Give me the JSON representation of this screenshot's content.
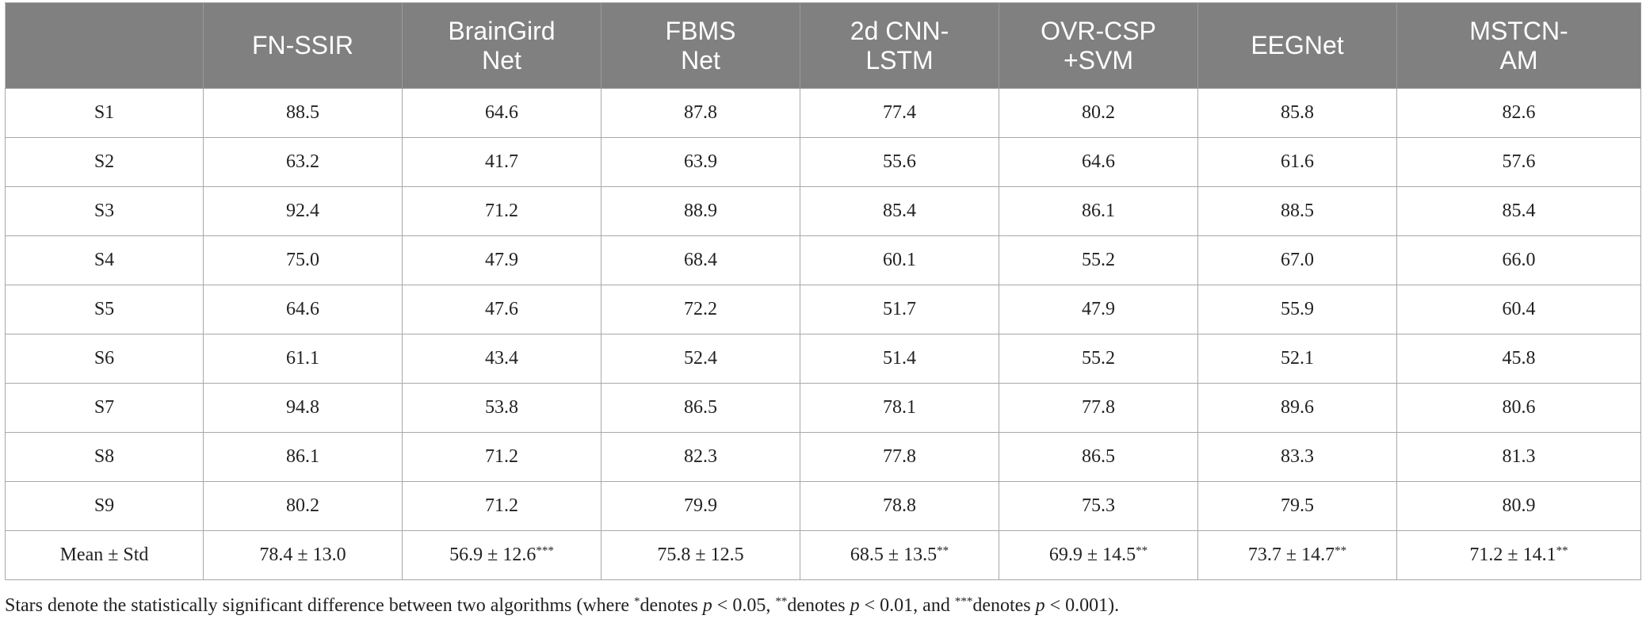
{
  "table": {
    "columns": [
      [
        "FN-SSIR"
      ],
      [
        "BrainGird",
        "Net"
      ],
      [
        "FBMS",
        "Net"
      ],
      [
        "2d CNN-",
        "LSTM"
      ],
      [
        "OVR-CSP",
        "+SVM"
      ],
      [
        "EEGNet"
      ],
      [
        "MSTCN-",
        "AM"
      ]
    ],
    "rows": [
      {
        "label": "S1",
        "cells": [
          {
            "text": "88.5"
          },
          {
            "text": "64.6"
          },
          {
            "text": "87.8"
          },
          {
            "text": "77.4"
          },
          {
            "text": "80.2"
          },
          {
            "text": "85.8"
          },
          {
            "text": "82.6"
          }
        ]
      },
      {
        "label": "S2",
        "cells": [
          {
            "text": "63.2"
          },
          {
            "text": "41.7"
          },
          {
            "text": "63.9"
          },
          {
            "text": "55.6"
          },
          {
            "text": "64.6"
          },
          {
            "text": "61.6"
          },
          {
            "text": "57.6"
          }
        ]
      },
      {
        "label": "S3",
        "cells": [
          {
            "text": "92.4"
          },
          {
            "text": "71.2"
          },
          {
            "text": "88.9"
          },
          {
            "text": "85.4"
          },
          {
            "text": "86.1"
          },
          {
            "text": "88.5"
          },
          {
            "text": "85.4"
          }
        ]
      },
      {
        "label": "S4",
        "cells": [
          {
            "text": "75.0"
          },
          {
            "text": "47.9"
          },
          {
            "text": "68.4"
          },
          {
            "text": "60.1"
          },
          {
            "text": "55.2"
          },
          {
            "text": "67.0"
          },
          {
            "text": "66.0"
          }
        ]
      },
      {
        "label": "S5",
        "cells": [
          {
            "text": "64.6"
          },
          {
            "text": "47.6"
          },
          {
            "text": "72.2"
          },
          {
            "text": "51.7"
          },
          {
            "text": "47.9"
          },
          {
            "text": "55.9"
          },
          {
            "text": "60.4"
          }
        ]
      },
      {
        "label": "S6",
        "cells": [
          {
            "text": "61.1"
          },
          {
            "text": "43.4"
          },
          {
            "text": "52.4"
          },
          {
            "text": "51.4"
          },
          {
            "text": "55.2"
          },
          {
            "text": "52.1"
          },
          {
            "text": "45.8"
          }
        ]
      },
      {
        "label": "S7",
        "cells": [
          {
            "text": "94.8"
          },
          {
            "text": "53.8"
          },
          {
            "text": "86.5"
          },
          {
            "text": "78.1"
          },
          {
            "text": "77.8"
          },
          {
            "text": "89.6"
          },
          {
            "text": "80.6"
          }
        ]
      },
      {
        "label": "S8",
        "cells": [
          {
            "text": "86.1"
          },
          {
            "text": "71.2"
          },
          {
            "text": "82.3"
          },
          {
            "text": "77.8"
          },
          {
            "text": "86.5"
          },
          {
            "text": "83.3"
          },
          {
            "text": "81.3"
          }
        ]
      },
      {
        "label": "S9",
        "cells": [
          {
            "text": "80.2"
          },
          {
            "text": "71.2"
          },
          {
            "text": "79.9"
          },
          {
            "text": "78.8"
          },
          {
            "text": "75.3"
          },
          {
            "text": "79.5"
          },
          {
            "text": "80.9"
          }
        ]
      },
      {
        "label": "Mean ± Std",
        "cells": [
          {
            "text": "78.4 ± 13.0"
          },
          {
            "text": "56.9 ± 12.6",
            "stars": "***"
          },
          {
            "text": "75.8 ± 12.5"
          },
          {
            "text": "68.5 ± 13.5",
            "stars": "**"
          },
          {
            "text": "69.9 ± 14.5",
            "stars": "**"
          },
          {
            "text": "73.7 ± 14.7",
            "stars": "**"
          },
          {
            "text": "71.2 ± 14.1",
            "stars": "**"
          }
        ]
      }
    ]
  },
  "footnote": [
    "Stars denote the statistically significant difference between two algorithms (where ",
    "*",
    "denotes ",
    "p",
    " < 0.05, ",
    "**",
    "denotes ",
    "p",
    " < 0.01, and ",
    "***",
    "denotes ",
    "p",
    " < 0.001)."
  ]
}
